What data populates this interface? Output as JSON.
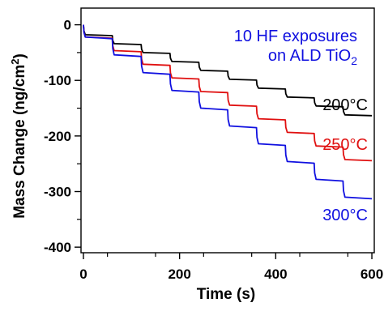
{
  "chart_data": {
    "type": "line",
    "title": "",
    "xlabel": "Time (s)",
    "ylabel": {
      "main": "Mass Change (ng/cm",
      "sup": "2",
      "end": ")"
    },
    "xlim": [
      -5,
      605
    ],
    "ylim": [
      -410,
      30
    ],
    "xticks": [
      0,
      200,
      400,
      600
    ],
    "xtick_labels": [
      "0",
      "200",
      "400",
      "600"
    ],
    "yticks": [
      0,
      -100,
      -200,
      -300,
      -400
    ],
    "ytick_labels": [
      "0",
      "-100",
      "-200",
      "-300",
      "-400"
    ],
    "annotation": {
      "line1": "10 HF exposures",
      "line2_prefix": "on ALD TiO",
      "line2_sub": "2"
    },
    "series": [
      {
        "name": "200°C",
        "color": "#000000",
        "initial_drop": -18,
        "step": -14.5,
        "creep": -1.5,
        "exposures": [
          0,
          60,
          120,
          180,
          240,
          300,
          360,
          420,
          480,
          540
        ]
      },
      {
        "name": "250°C",
        "color": "#e01010",
        "initial_drop": -22,
        "step": -22.5,
        "creep": -2,
        "exposures": [
          0,
          60,
          120,
          180,
          240,
          300,
          360,
          420,
          480,
          540
        ]
      },
      {
        "name": "300°C",
        "color": "#1010e0",
        "initial_drop": -22,
        "step": -29,
        "creep": -3,
        "exposures": [
          0,
          60,
          120,
          180,
          240,
          300,
          360,
          420,
          480,
          540
        ]
      }
    ],
    "grid": false,
    "legend": "inline-right"
  }
}
